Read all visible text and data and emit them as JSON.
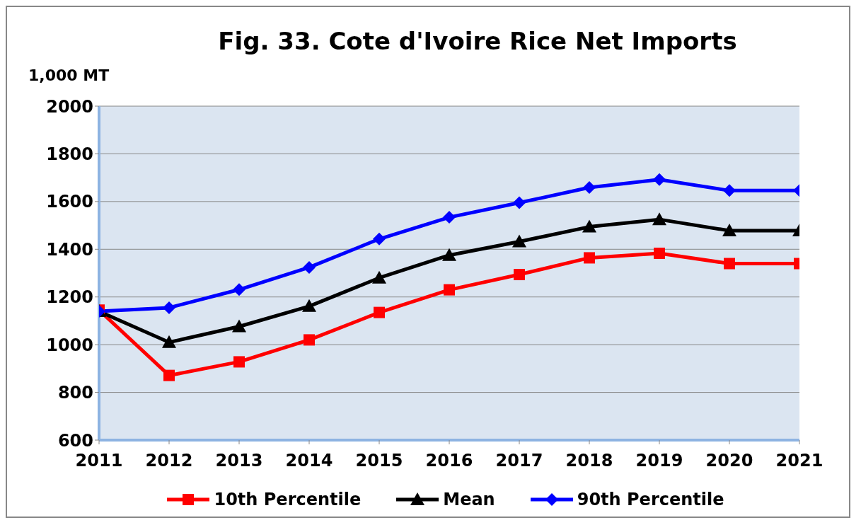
{
  "chart_data": {
    "type": "line",
    "title": "Fig. 33.  Cote d'Ivoire Rice Net Imports",
    "ylabel": "1,000 MT",
    "categories": [
      "2011",
      "2012",
      "2013",
      "2014",
      "2015",
      "2016",
      "2017",
      "2018",
      "2019",
      "2020",
      "2021"
    ],
    "series": [
      {
        "name": "10th Percentile",
        "color": "#ff0000",
        "marker": "square",
        "values": [
          1145,
          871,
          928,
          1020,
          1135,
          1230,
          1294,
          1364,
          1383,
          1340,
          1340
        ]
      },
      {
        "name": "Mean",
        "color": "#000000",
        "marker": "triangle",
        "values": [
          1140,
          1010,
          1076,
          1161,
          1280,
          1375,
          1432,
          1494,
          1525,
          1478,
          1478
        ]
      },
      {
        "name": "90th Percentile",
        "color": "#0000ff",
        "marker": "diamond",
        "values": [
          1140,
          1155,
          1231,
          1324,
          1443,
          1534,
          1595,
          1659,
          1692,
          1646,
          1646
        ]
      }
    ],
    "ylim": [
      600,
      2000
    ],
    "yticks": [
      600,
      800,
      1000,
      1200,
      1400,
      1600,
      1800,
      2000
    ],
    "grid": "y",
    "legend": "bottom",
    "line_style": "solid"
  }
}
